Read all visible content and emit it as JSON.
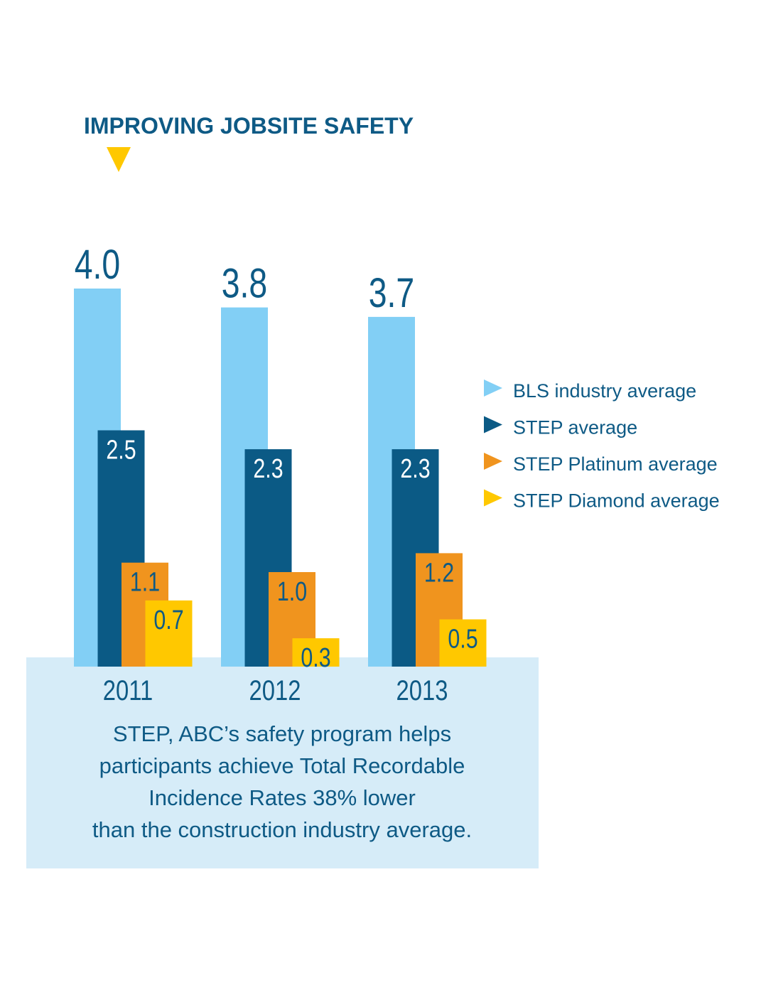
{
  "chart_data": {
    "type": "bar",
    "title": "IMPROVING JOBSITE SAFETY",
    "categories": [
      "2011",
      "2012",
      "2013"
    ],
    "series": [
      {
        "name": "BLS industry average",
        "color": "#82cff5",
        "values": [
          4.0,
          3.8,
          3.7
        ],
        "value_labels": [
          "4.0",
          "3.8",
          "3.7"
        ]
      },
      {
        "name": "STEP average",
        "color": "#0b5a85",
        "values": [
          2.5,
          2.3,
          2.3
        ],
        "value_labels": [
          "2.5",
          "2.3",
          "2.3"
        ]
      },
      {
        "name": "STEP Platinum average",
        "color": "#f0941e",
        "values": [
          1.1,
          1.0,
          1.2
        ],
        "value_labels": [
          "1.1",
          "1.0",
          "1.2"
        ]
      },
      {
        "name": "STEP Diamond average",
        "color": "#ffc800",
        "values": [
          0.7,
          0.3,
          0.5
        ],
        "value_labels": [
          "0.7",
          "0.3",
          "0.5"
        ]
      }
    ],
    "annotation": [
      "STEP, ABC’s safety program helps",
      "participants achieve Total Recordable",
      "Incidence Rates 38% lower",
      "than the construction industry average."
    ],
    "legend": "right"
  }
}
